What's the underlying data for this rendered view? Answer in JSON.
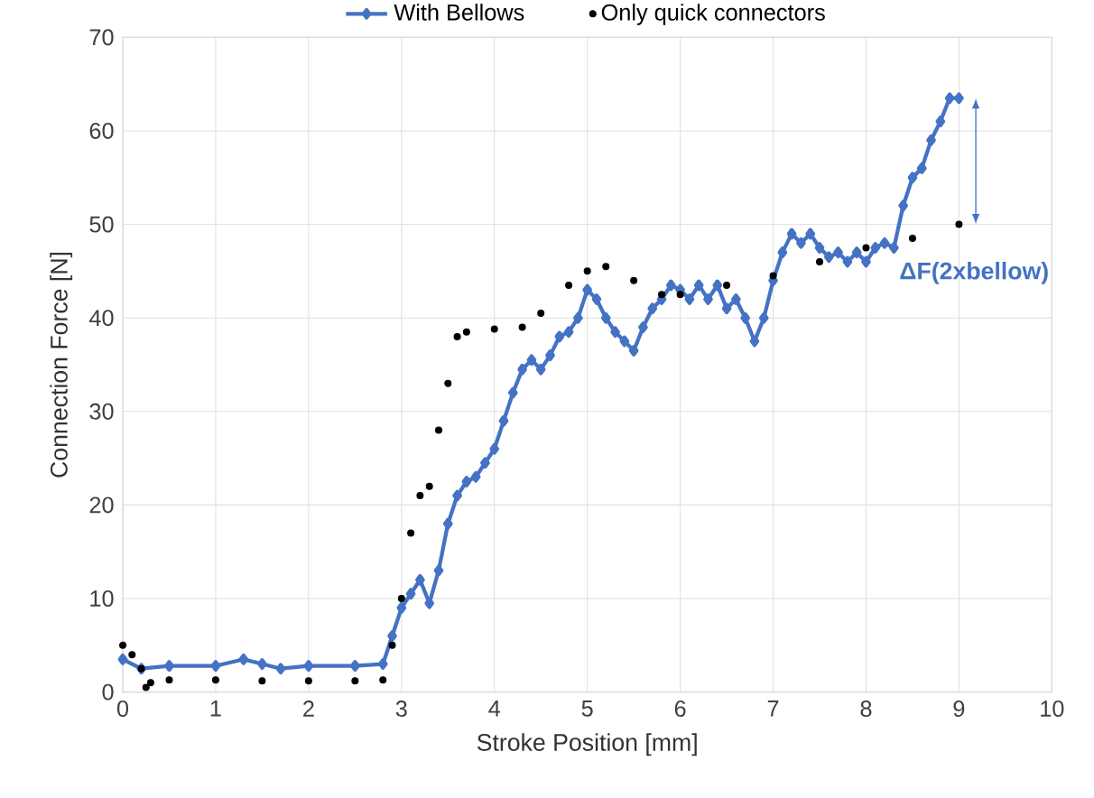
{
  "chart_data": {
    "type": "line",
    "xlabel": "Stroke Position [mm]",
    "ylabel": "Connection Force [N]",
    "xlim": [
      0,
      10
    ],
    "ylim": [
      0,
      70
    ],
    "xticks": [
      0,
      1,
      2,
      3,
      4,
      5,
      6,
      7,
      8,
      9,
      10
    ],
    "yticks": [
      0,
      10,
      20,
      30,
      40,
      50,
      60,
      70
    ],
    "grid": true,
    "legend": "top",
    "annotations": [
      "ΔF(2xbellow)"
    ],
    "series": [
      {
        "name": "With Bellows",
        "marker": "diamond",
        "color": "#4472c4",
        "x": [
          0,
          0.2,
          0.5,
          1,
          1.3,
          1.5,
          1.7,
          2,
          2.5,
          2.8,
          2.9,
          3.0,
          3.1,
          3.2,
          3.3,
          3.4,
          3.5,
          3.6,
          3.7,
          3.8,
          3.9,
          4.0,
          4.1,
          4.2,
          4.3,
          4.4,
          4.5,
          4.6,
          4.7,
          4.8,
          4.9,
          5.0,
          5.1,
          5.2,
          5.3,
          5.4,
          5.5,
          5.6,
          5.7,
          5.8,
          5.9,
          6.0,
          6.1,
          6.2,
          6.3,
          6.4,
          6.5,
          6.6,
          6.7,
          6.8,
          6.9,
          7.0,
          7.1,
          7.2,
          7.3,
          7.4,
          7.5,
          7.6,
          7.7,
          7.8,
          7.9,
          8.0,
          8.1,
          8.2,
          8.3,
          8.4,
          8.5,
          8.6,
          8.7,
          8.8,
          8.9,
          9.0
        ],
        "values": [
          3.5,
          2.5,
          2.8,
          2.8,
          3.5,
          3.0,
          2.5,
          2.8,
          2.8,
          3.0,
          6,
          9,
          10.5,
          12,
          9.5,
          13,
          18,
          21,
          22.5,
          23,
          24.5,
          26,
          29,
          32,
          34.5,
          35.5,
          34.5,
          36,
          38,
          38.5,
          40,
          43,
          42,
          40,
          38.5,
          37.5,
          36.5,
          39,
          41,
          42,
          43.5,
          43,
          42,
          43.5,
          42,
          43.5,
          41,
          42,
          40,
          37.5,
          40,
          44,
          47,
          49,
          48,
          49,
          47.5,
          46.5,
          47,
          46,
          47,
          46,
          47.5,
          48,
          47.5,
          52,
          55,
          56,
          59,
          61,
          63.5,
          63.5
        ]
      },
      {
        "name": "Only quick connectors",
        "type": "scatter",
        "marker": "circle",
        "color": "#000000",
        "x": [
          0,
          0.1,
          0.2,
          0.25,
          0.3,
          0.5,
          1,
          1.5,
          2,
          2.5,
          2.8,
          2.9,
          3.0,
          3.1,
          3.2,
          3.3,
          3.4,
          3.5,
          3.6,
          3.7,
          4.0,
          4.3,
          4.5,
          4.8,
          5.0,
          5.2,
          5.5,
          5.8,
          6.0,
          6.5,
          7,
          7.5,
          8,
          8.5,
          9
        ],
        "values": [
          5,
          4,
          2.5,
          0.5,
          1.0,
          1.3,
          1.3,
          1.2,
          1.2,
          1.2,
          1.3,
          5,
          10,
          17,
          21,
          22,
          28,
          33,
          38,
          38.5,
          38.8,
          39,
          40.5,
          43.5,
          45,
          45.5,
          44,
          42.5,
          42.5,
          43.5,
          44.5,
          46,
          47.5,
          48.5,
          50
        ]
      }
    ]
  }
}
